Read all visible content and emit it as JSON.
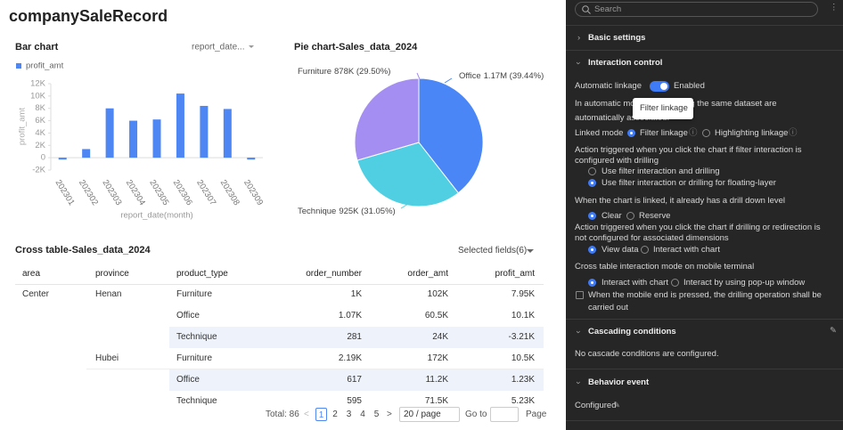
{
  "dashboard": {
    "title": "companySaleRecord"
  },
  "chart_data": [
    {
      "type": "bar",
      "title": "Bar chart",
      "dimension_selector": "report_date...",
      "legend": "profit_amt",
      "ylabel": "profit_amt",
      "xlabel": "report_date(month)",
      "categories": [
        "202301",
        "202302",
        "202303",
        "202304",
        "202305",
        "202306",
        "202307",
        "202308",
        "202309"
      ],
      "series": [
        {
          "name": "profit_amt",
          "color": "#4e86f4",
          "values": [
            -300,
            1400,
            8000,
            6000,
            6200,
            10400,
            8400,
            7900,
            -300
          ]
        }
      ],
      "ylim": [
        -2000,
        12000
      ],
      "yticks": [
        {
          "value": -2000,
          "label": "-2K"
        },
        0,
        {
          "value": 2000,
          "label": "2K"
        },
        {
          "value": 4000,
          "label": "4K"
        },
        {
          "value": 6000,
          "label": "6K"
        },
        {
          "value": 8000,
          "label": "8K"
        },
        {
          "value": 10000,
          "label": "10K"
        },
        {
          "value": 12000,
          "label": "12K"
        }
      ],
      "grid": false
    },
    {
      "type": "pie",
      "title": "Pie chart-Sales_data_2024",
      "categories": [
        "Office",
        "Technique",
        "Furniture"
      ],
      "values": [
        39.44,
        31.05,
        29.5
      ],
      "value_labels": [
        "1.17M (39.44%)",
        "925K (31.05%)",
        "878K (29.50%)"
      ],
      "colors": [
        "#4a86f5",
        "#4fcfe1",
        "#a48ef1"
      ]
    }
  ],
  "table": {
    "title": "Cross table-Sales_data_2024",
    "selector": "Selected fields(6)",
    "columns": [
      "area",
      "province",
      "product_type",
      "order_number",
      "order_amt",
      "profit_amt"
    ],
    "rows": [
      [
        "Center",
        "Henan",
        "Furniture",
        "1K",
        "102K",
        "7.95K"
      ],
      [
        null,
        null,
        "Office",
        "1.07K",
        "60.5K",
        "10.1K"
      ],
      [
        null,
        null,
        "Technique",
        "281",
        "24K",
        "-3.21K"
      ],
      [
        null,
        "Hubei",
        "Furniture",
        "2.19K",
        "172K",
        "10.5K"
      ],
      [
        null,
        null,
        "Office",
        "617",
        "11.2K",
        "1.23K"
      ],
      [
        null,
        null,
        "Technique",
        "595",
        "71.5K",
        "5.23K"
      ]
    ]
  },
  "pagination": {
    "total": "Total: 86",
    "pages": [
      1,
      2,
      3,
      4,
      5
    ],
    "current": 0,
    "page_size": "20 / page",
    "goto": "Go to",
    "suffix": "Page"
  },
  "panel": {
    "search": "Search",
    "sections": [
      "Basic settings",
      "Interaction control",
      "Cascading conditions",
      "Behavior event"
    ],
    "automatic_linkage": {
      "label": "Automatic linkage",
      "state": "Enabled",
      "enabled": true,
      "description": "In automatic mode, charts using the same dataset are automatically associated.",
      "tooltip": "Filter linkage"
    },
    "groups": [
      {
        "label": "Linked mode",
        "options": [
          "Filter linkage",
          "Highlighting linkage"
        ],
        "selected": 0
      },
      {
        "label": "Action triggered when you click the chart if filter interaction is configured with drilling",
        "options": [
          "Use filter interaction and drilling",
          "Use filter interaction or drilling for floating-layer"
        ],
        "selected": 1
      },
      {
        "label": "When the chart is linked, it already has a drill down level",
        "options": [
          "Clear",
          "Reserve"
        ],
        "selected": 0
      },
      {
        "label": "Action triggered when you click the chart if drilling or redirection is not configured for associated dimensions",
        "options": [
          "View data",
          "Interact with chart"
        ],
        "selected": 0
      },
      {
        "label": "Cross table interaction mode on mobile terminal",
        "options": [
          "Interact with chart",
          "Interact by using pop-up window"
        ],
        "selected": 0
      }
    ],
    "mobile_drill": {
      "label": "When the mobile end is pressed, the drilling operation shall be carried out",
      "checked": false
    },
    "cascade_empty": "No cascade conditions are configured.",
    "behavior_status": "Configured"
  }
}
